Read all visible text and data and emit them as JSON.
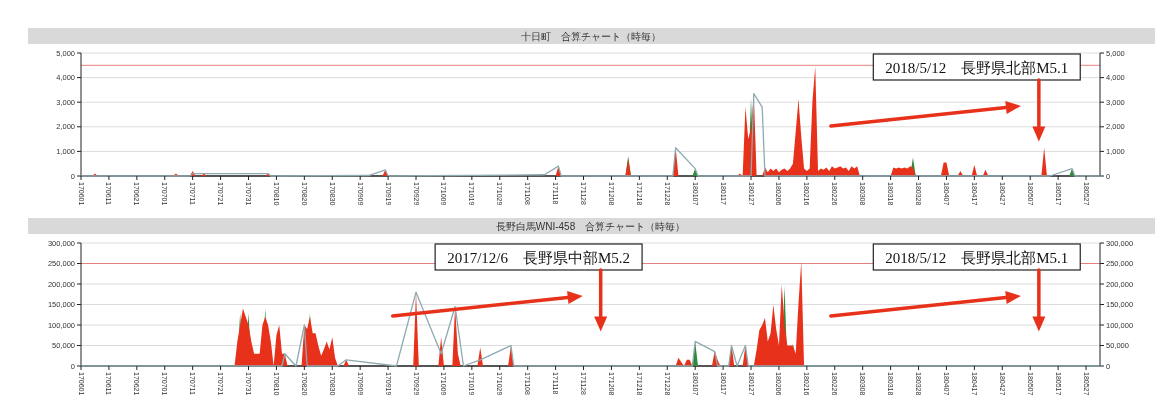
{
  "chart_data": [
    {
      "type": "area",
      "title": "十日町　合算チャート（時毎）",
      "grid": "y",
      "xlim": [
        "2017-06-01",
        "2018-06-01"
      ],
      "xticks": [
        {
          "value": "2017-06-01",
          "label": "170601"
        },
        {
          "value": "2017-06-11",
          "label": "170611"
        },
        {
          "value": "2017-06-21",
          "label": "170621"
        },
        {
          "value": "2017-07-01",
          "label": "170701"
        },
        {
          "value": "2017-07-11",
          "label": "170711"
        },
        {
          "value": "2017-07-21",
          "label": "170721"
        },
        {
          "value": "2017-07-31",
          "label": "170731"
        },
        {
          "value": "2017-08-10",
          "label": "170810"
        },
        {
          "value": "2017-08-20",
          "label": "170820"
        },
        {
          "value": "2017-08-30",
          "label": "170830"
        },
        {
          "value": "2017-09-09",
          "label": "170909"
        },
        {
          "value": "2017-09-19",
          "label": "170919"
        },
        {
          "value": "2017-09-29",
          "label": "170929"
        },
        {
          "value": "2017-10-09",
          "label": "171009"
        },
        {
          "value": "2017-10-19",
          "label": "171019"
        },
        {
          "value": "2017-10-29",
          "label": "171029"
        },
        {
          "value": "2017-11-08",
          "label": "171108"
        },
        {
          "value": "2017-11-18",
          "label": "171118"
        },
        {
          "value": "2017-11-28",
          "label": "171128"
        },
        {
          "value": "2017-12-08",
          "label": "171208"
        },
        {
          "value": "2017-12-18",
          "label": "171218"
        },
        {
          "value": "2017-12-28",
          "label": "171228"
        },
        {
          "value": "2018-01-07",
          "label": "180107"
        },
        {
          "value": "2018-01-17",
          "label": "180117"
        },
        {
          "value": "2018-01-27",
          "label": "180127"
        },
        {
          "value": "2018-02-06",
          "label": "180206"
        },
        {
          "value": "2018-02-16",
          "label": "180216"
        },
        {
          "value": "2018-02-26",
          "label": "180226"
        },
        {
          "value": "2018-03-08",
          "label": "180308"
        },
        {
          "value": "2018-03-18",
          "label": "180318"
        },
        {
          "value": "2018-03-28",
          "label": "180328"
        },
        {
          "value": "2018-04-07",
          "label": "180407"
        },
        {
          "value": "2018-04-17",
          "label": "180417"
        },
        {
          "value": "2018-04-27",
          "label": "180427"
        },
        {
          "value": "2018-05-07",
          "label": "180507"
        },
        {
          "value": "2018-05-17",
          "label": "180517"
        },
        {
          "value": "2018-05-27",
          "label": "180527"
        }
      ],
      "ylim": [
        0,
        5000
      ],
      "yticks": [
        0,
        {
          "value": 1000,
          "label": "1,000"
        },
        {
          "value": 2000,
          "label": "2,000"
        },
        {
          "value": 3000,
          "label": "3,000"
        },
        {
          "value": 4000,
          "label": "4,000"
        },
        {
          "value": 5000,
          "label": "5,000"
        }
      ],
      "y2lim": [
        0,
        5000
      ],
      "y2ticks": [
        0,
        {
          "value": 1000,
          "label": "1,000"
        },
        {
          "value": 2000,
          "label": "2,000"
        },
        {
          "value": 3000,
          "label": "3,000"
        },
        {
          "value": 4000,
          "label": "4,000"
        },
        {
          "value": 5000,
          "label": "5,000"
        }
      ],
      "ref_lines": [
        {
          "axis": "y",
          "value": 4500,
          "color": "#e58080"
        }
      ],
      "annotations": [
        "2018/5/12　長野県北部M5.1"
      ],
      "series": [
        {
          "color": "#2e8b3c",
          "x": [
            "2017-12-13",
            "2017-12-14",
            "2017-12-15",
            "2018-01-06",
            "2018-01-07",
            "2018-01-08",
            "2018-01-26",
            "2018-01-27",
            "2018-01-28",
            "2018-02-12",
            "2018-02-13",
            "2018-02-14",
            "2018-03-25",
            "2018-03-26",
            "2018-03-27",
            "2018-05-21",
            "2018-05-22",
            "2018-05-23"
          ],
          "values": [
            0,
            800,
            0,
            0,
            300,
            0,
            0,
            3150,
            0,
            0,
            3150,
            0,
            0,
            750,
            0,
            0,
            300,
            0
          ]
        },
        {
          "color": "#e8311a",
          "x": [
            "2017-06-05",
            "2017-06-06",
            "2017-06-07",
            "2017-07-04",
            "2017-07-05",
            "2017-07-06",
            "2017-07-10",
            "2017-07-11",
            "2017-07-12",
            "2017-07-14",
            "2017-07-15",
            "2017-07-16",
            "2017-08-06",
            "2017-08-07",
            "2017-08-08",
            "2017-09-17",
            "2017-09-18",
            "2017-09-19",
            "2017-11-18",
            "2017-11-19",
            "2017-11-20",
            "2017-12-13",
            "2017-12-14",
            "2017-12-15",
            "2017-12-30",
            "2017-12-31",
            "2018-01-01",
            "2018-01-22",
            "2018-01-23",
            "2018-01-24",
            "2018-01-25",
            "2018-01-26",
            "2018-01-27",
            "2018-01-28",
            "2018-01-29",
            "2018-01-31",
            "2018-02-01",
            "2018-02-02",
            "2018-02-03",
            "2018-02-04",
            "2018-02-05",
            "2018-02-06",
            "2018-02-07",
            "2018-02-08",
            "2018-02-09",
            "2018-02-10",
            "2018-02-11",
            "2018-02-12",
            "2018-02-13",
            "2018-02-14",
            "2018-02-15",
            "2018-02-16",
            "2018-02-17",
            "2018-02-18",
            "2018-02-19",
            "2018-02-20",
            "2018-02-21",
            "2018-02-22",
            "2018-02-23",
            "2018-02-24",
            "2018-02-25",
            "2018-02-26",
            "2018-02-27",
            "2018-02-28",
            "2018-03-01",
            "2018-03-02",
            "2018-03-03",
            "2018-03-04",
            "2018-03-05",
            "2018-03-06",
            "2018-03-07",
            "2018-03-18",
            "2018-03-19",
            "2018-03-20",
            "2018-03-21",
            "2018-03-22",
            "2018-03-23",
            "2018-03-24",
            "2018-03-25",
            "2018-03-26",
            "2018-03-27",
            "2018-04-05",
            "2018-04-06",
            "2018-04-07",
            "2018-04-08",
            "2018-04-11",
            "2018-04-12",
            "2018-04-13",
            "2018-04-16",
            "2018-04-17",
            "2018-04-18",
            "2018-04-20",
            "2018-04-21",
            "2018-04-22",
            "2018-05-11",
            "2018-05-12",
            "2018-05-13"
          ],
          "values": [
            0,
            100,
            0,
            0,
            100,
            0,
            0,
            200,
            0,
            0,
            100,
            0,
            0,
            100,
            0,
            0,
            250,
            0,
            0,
            400,
            0,
            0,
            700,
            0,
            0,
            1150,
            0,
            0,
            100,
            0,
            2800,
            1500,
            1900,
            3350,
            0,
            0,
            350,
            150,
            300,
            200,
            300,
            150,
            250,
            300,
            200,
            300,
            500,
            1800,
            3100,
            1600,
            300,
            200,
            300,
            3050,
            4450,
            200,
            300,
            250,
            350,
            200,
            400,
            300,
            350,
            400,
            300,
            350,
            200,
            400,
            300,
            400,
            0,
            0,
            350,
            300,
            350,
            300,
            350,
            300,
            400,
            350,
            0,
            0,
            550,
            550,
            0,
            0,
            200,
            0,
            0,
            450,
            0,
            0,
            250,
            0,
            0,
            1150,
            0
          ]
        },
        {
          "type": "line",
          "color": "#8eaab0",
          "x": [
            "2017-06-01",
            "2017-07-10",
            "2017-07-11",
            "2017-08-07",
            "2017-08-08",
            "2017-09-12",
            "2017-09-18",
            "2017-09-19",
            "2017-11-14",
            "2017-11-19",
            "2017-11-20",
            "2017-12-30",
            "2017-12-31",
            "2018-01-07",
            "2018-01-08",
            "2018-01-27",
            "2018-01-28",
            "2018-01-31",
            "2018-02-01",
            "2018-05-14",
            "2018-05-22",
            "2018-05-23",
            "2018-06-01"
          ],
          "values": [
            0,
            0,
            100,
            100,
            0,
            20,
            250,
            0,
            50,
            400,
            0,
            0,
            1150,
            300,
            0,
            0,
            3350,
            2800,
            0,
            0,
            300,
            0,
            0
          ]
        }
      ]
    },
    {
      "type": "area",
      "title": "長野白馬WNI-458　合算チャート（時毎）",
      "grid": "y",
      "xlim": [
        "2017-06-01",
        "2018-06-01"
      ],
      "xticks": [
        {
          "value": "2017-06-01",
          "label": "170601"
        },
        {
          "value": "2017-06-11",
          "label": "170611"
        },
        {
          "value": "2017-06-21",
          "label": "170621"
        },
        {
          "value": "2017-07-01",
          "label": "170701"
        },
        {
          "value": "2017-07-11",
          "label": "170711"
        },
        {
          "value": "2017-07-21",
          "label": "170721"
        },
        {
          "value": "2017-07-31",
          "label": "170731"
        },
        {
          "value": "2017-08-10",
          "label": "170810"
        },
        {
          "value": "2017-08-20",
          "label": "170820"
        },
        {
          "value": "2017-08-30",
          "label": "170830"
        },
        {
          "value": "2017-09-09",
          "label": "170909"
        },
        {
          "value": "2017-09-19",
          "label": "170919"
        },
        {
          "value": "2017-09-29",
          "label": "170929"
        },
        {
          "value": "2017-10-09",
          "label": "171009"
        },
        {
          "value": "2017-10-19",
          "label": "171019"
        },
        {
          "value": "2017-10-29",
          "label": "171029"
        },
        {
          "value": "2017-11-08",
          "label": "171108"
        },
        {
          "value": "2017-11-18",
          "label": "171118"
        },
        {
          "value": "2017-11-28",
          "label": "171128"
        },
        {
          "value": "2017-12-08",
          "label": "171208"
        },
        {
          "value": "2017-12-18",
          "label": "171218"
        },
        {
          "value": "2017-12-28",
          "label": "171228"
        },
        {
          "value": "2018-01-07",
          "label": "180107"
        },
        {
          "value": "2018-01-17",
          "label": "180117"
        },
        {
          "value": "2018-01-27",
          "label": "180127"
        },
        {
          "value": "2018-02-06",
          "label": "180206"
        },
        {
          "value": "2018-02-16",
          "label": "180216"
        },
        {
          "value": "2018-02-26",
          "label": "180226"
        },
        {
          "value": "2018-03-08",
          "label": "180308"
        },
        {
          "value": "2018-03-18",
          "label": "180318"
        },
        {
          "value": "2018-03-28",
          "label": "180328"
        },
        {
          "value": "2018-04-07",
          "label": "180407"
        },
        {
          "value": "2018-04-17",
          "label": "180417"
        },
        {
          "value": "2018-04-27",
          "label": "180427"
        },
        {
          "value": "2018-05-07",
          "label": "180507"
        },
        {
          "value": "2018-05-17",
          "label": "180517"
        },
        {
          "value": "2018-05-27",
          "label": "180527"
        }
      ],
      "ylim": [
        0,
        300000
      ],
      "yticks": [
        0,
        {
          "value": 50000,
          "label": "50,000"
        },
        {
          "value": 100000,
          "label": "100,000"
        },
        {
          "value": 150000,
          "label": "150,000"
        },
        {
          "value": 200000,
          "label": "200,000"
        },
        {
          "value": 250000,
          "label": "250,000"
        },
        {
          "value": 300000,
          "label": "300,000"
        }
      ],
      "y2lim": [
        0,
        300000
      ],
      "y2ticks": [
        0,
        {
          "value": 50000,
          "label": "50,000"
        },
        {
          "value": 100000,
          "label": "100,000"
        },
        {
          "value": 150000,
          "label": "150,000"
        },
        {
          "value": 200000,
          "label": "200,000"
        },
        {
          "value": 250000,
          "label": "250,000"
        },
        {
          "value": 300000,
          "label": "300,000"
        }
      ],
      "ref_lines": [
        {
          "axis": "y",
          "value": 250000,
          "color": "#e58080"
        }
      ],
      "annotations": [
        "2017/12/6　長野県中部M5.2",
        "2018/5/12　長野県北部M5.1"
      ],
      "series": [
        {
          "color": "#2e8b3c",
          "x": [
            "2017-07-27",
            "2017-07-28",
            "2017-07-29",
            "2017-07-30",
            "2017-07-31",
            "2017-08-01",
            "2017-08-05",
            "2017-08-06",
            "2017-08-07",
            "2017-08-21",
            "2017-08-22",
            "2017-08-23",
            "2018-01-06",
            "2018-01-07",
            "2018-01-08",
            "2018-02-07",
            "2018-02-08",
            "2018-02-09",
            "2018-02-10",
            "2018-02-11",
            "2018-02-12"
          ],
          "values": [
            0,
            130000,
            0,
            0,
            130000,
            0,
            0,
            140000,
            0,
            0,
            130000,
            0,
            0,
            60000,
            0,
            0,
            195000,
            0,
            0,
            55000,
            0
          ]
        },
        {
          "color": "#e8311a",
          "x": [
            "2017-07-26",
            "2017-07-27",
            "2017-07-28",
            "2017-07-29",
            "2017-07-30",
            "2017-07-31",
            "2017-08-01",
            "2017-08-02",
            "2017-08-03",
            "2017-08-04",
            "2017-08-05",
            "2017-08-06",
            "2017-08-07",
            "2017-08-08",
            "2017-08-09",
            "2017-08-10",
            "2017-08-11",
            "2017-08-12",
            "2017-08-13",
            "2017-08-14",
            "2017-08-19",
            "2017-08-20",
            "2017-08-21",
            "2017-08-22",
            "2017-08-23",
            "2017-08-24",
            "2017-08-25",
            "2017-08-26",
            "2017-08-27",
            "2017-08-28",
            "2017-08-29",
            "2017-08-30",
            "2017-08-31",
            "2017-09-01",
            "2017-09-03",
            "2017-09-04",
            "2017-09-05",
            "2017-09-28",
            "2017-09-29",
            "2017-09-30",
            "2017-10-07",
            "2017-10-08",
            "2017-10-09",
            "2017-10-12",
            "2017-10-13",
            "2017-10-14",
            "2017-10-15",
            "2017-10-21",
            "2017-10-22",
            "2017-10-23",
            "2017-11-01",
            "2017-11-02",
            "2017-11-03",
            "2017-12-31",
            "2018-01-01",
            "2018-01-02",
            "2018-01-03",
            "2018-01-04",
            "2018-01-05",
            "2018-01-06",
            "2018-01-13",
            "2018-01-14",
            "2018-01-15",
            "2018-01-16",
            "2018-01-19",
            "2018-01-20",
            "2018-01-21",
            "2018-01-24",
            "2018-01-25",
            "2018-01-26",
            "2018-01-28",
            "2018-01-29",
            "2018-01-30",
            "2018-01-31",
            "2018-02-01",
            "2018-02-02",
            "2018-02-03",
            "2018-02-04",
            "2018-02-05",
            "2018-02-06",
            "2018-02-07",
            "2018-02-08",
            "2018-02-09",
            "2018-02-10",
            "2018-02-11",
            "2018-02-12",
            "2018-02-13",
            "2018-02-14",
            "2018-02-15"
          ],
          "values": [
            0,
            60000,
            100000,
            140000,
            120000,
            100000,
            60000,
            30000,
            30000,
            30000,
            100000,
            120000,
            100000,
            60000,
            0,
            75000,
            100000,
            30000,
            30000,
            0,
            0,
            100000,
            90000,
            120000,
            80000,
            80000,
            50000,
            25000,
            40000,
            60000,
            40000,
            70000,
            20000,
            0,
            0,
            15000,
            0,
            0,
            180000,
            0,
            0,
            70000,
            0,
            0,
            145000,
            30000,
            0,
            0,
            45000,
            0,
            0,
            50000,
            0,
            0,
            20000,
            10000,
            0,
            15000,
            15000,
            0,
            0,
            37000,
            15000,
            0,
            0,
            50000,
            0,
            0,
            50000,
            0,
            0,
            40000,
            88000,
            100000,
            117000,
            60000,
            80000,
            149000,
            90000,
            50000,
            199000,
            100000,
            50000,
            50000,
            50000,
            30000,
            153000,
            255000,
            0
          ]
        },
        {
          "type": "line",
          "color": "#8eaab0",
          "x": [
            "2017-06-01",
            "2017-08-12",
            "2017-08-13",
            "2017-08-17",
            "2017-08-20",
            "2017-08-21",
            "2017-09-01",
            "2017-09-04",
            "2017-09-22",
            "2017-09-29",
            "2017-10-08",
            "2017-10-13",
            "2017-10-16",
            "2017-10-22",
            "2017-11-02",
            "2017-11-03",
            "2018-01-06",
            "2018-01-07",
            "2018-01-14",
            "2018-01-15",
            "2018-01-19",
            "2018-01-20",
            "2018-01-22",
            "2018-01-25",
            "2018-01-26",
            "2018-06-01"
          ],
          "values": [
            0,
            0,
            30000,
            0,
            100000,
            0,
            0,
            15000,
            0,
            180000,
            30000,
            145000,
            0,
            15000,
            50000,
            0,
            0,
            60000,
            35000,
            0,
            0,
            50000,
            0,
            50000,
            0,
            0
          ]
        }
      ]
    }
  ]
}
